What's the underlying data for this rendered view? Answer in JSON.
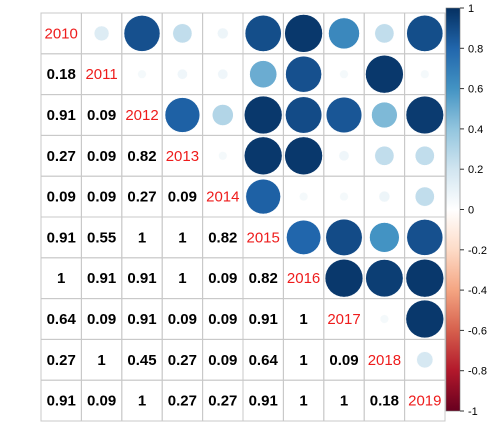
{
  "chart_data": {
    "type": "heatmap",
    "title": "",
    "labels": [
      "2010",
      "2011",
      "2012",
      "2013",
      "2014",
      "2015",
      "2016",
      "2017",
      "2018",
      "2019"
    ],
    "lower_values": [
      [
        null,
        null,
        null,
        null,
        null,
        null,
        null,
        null,
        null,
        null
      ],
      [
        0.18,
        null,
        null,
        null,
        null,
        null,
        null,
        null,
        null,
        null
      ],
      [
        0.91,
        0.09,
        null,
        null,
        null,
        null,
        null,
        null,
        null,
        null
      ],
      [
        0.27,
        0.09,
        0.82,
        null,
        null,
        null,
        null,
        null,
        null,
        null
      ],
      [
        0.09,
        0.09,
        0.27,
        0.09,
        null,
        null,
        null,
        null,
        null,
        null
      ],
      [
        0.91,
        0.55,
        1,
        1,
        0.82,
        null,
        null,
        null,
        null,
        null
      ],
      [
        1,
        0.91,
        0.91,
        1,
        0.09,
        0.82,
        null,
        null,
        null,
        null
      ],
      [
        0.64,
        0.09,
        0.91,
        0.09,
        0.09,
        0.91,
        1,
        null,
        null,
        null
      ],
      [
        0.27,
        1,
        0.45,
        0.27,
        0.09,
        0.64,
        1,
        0.09,
        null,
        null
      ],
      [
        0.91,
        0.09,
        1,
        0.27,
        0.27,
        0.91,
        1,
        1,
        0.18,
        null
      ]
    ],
    "upper_values": [
      [
        null,
        0.15,
        0.88,
        0.25,
        0.08,
        0.89,
        0.97,
        0.65,
        0.25,
        0.89
      ],
      [
        null,
        null,
        0.05,
        0.07,
        0.07,
        0.5,
        0.88,
        0.05,
        0.97,
        0.05
      ],
      [
        null,
        null,
        null,
        0.82,
        0.3,
        0.97,
        0.9,
        0.86,
        0.45,
        0.96
      ],
      [
        null,
        null,
        null,
        null,
        0.05,
        0.97,
        0.97,
        0.07,
        0.25,
        0.25
      ],
      [
        null,
        null,
        null,
        null,
        null,
        0.82,
        0.05,
        0.05,
        0.08,
        0.25
      ],
      [
        null,
        null,
        null,
        null,
        null,
        null,
        0.8,
        0.9,
        0.6,
        0.88
      ],
      [
        null,
        null,
        null,
        null,
        null,
        null,
        null,
        0.97,
        0.95,
        0.97
      ],
      [
        null,
        null,
        null,
        null,
        null,
        null,
        null,
        null,
        0.05,
        0.97
      ],
      [
        null,
        null,
        null,
        null,
        null,
        null,
        null,
        null,
        null,
        0.18
      ],
      [
        null,
        null,
        null,
        null,
        null,
        null,
        null,
        null,
        null,
        null
      ]
    ],
    "color_scale": {
      "min": -1,
      "max": 1,
      "ticks": [
        "1",
        "0.8",
        "0.6",
        "0.4",
        "0.2",
        "0",
        "-0.2",
        "-0.4",
        "-0.6",
        "-0.8",
        "-1"
      ],
      "colors": [
        "#67001f",
        "#b2182b",
        "#d6604d",
        "#f4a582",
        "#fddbc7",
        "#ffffff",
        "#d1e5f0",
        "#92c5de",
        "#4393c3",
        "#2166ac",
        "#053061"
      ]
    },
    "legend_position": "right",
    "grid": true
  }
}
